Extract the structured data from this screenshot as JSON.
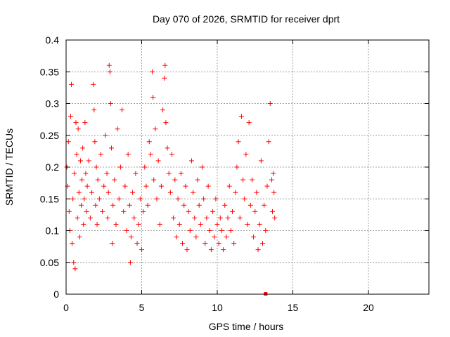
{
  "chart_data": {
    "type": "scatter",
    "title": "Day 070 of 2026, SRMTID for receiver dprt",
    "xlabel": "GPS time / hours",
    "ylabel": "SRMTID / TECUs",
    "xlim": [
      0,
      24
    ],
    "ylim": [
      0,
      0.4
    ],
    "xticks": [
      0,
      5,
      10,
      15,
      20
    ],
    "yticks": [
      0,
      0.05,
      0.1,
      0.15,
      0.2,
      0.25,
      0.3,
      0.35,
      0.4
    ],
    "xtick_labels": [
      "0",
      "5",
      "10",
      "15",
      "20"
    ],
    "ytick_labels": [
      "0",
      "0.05",
      "0.1",
      "0.15",
      "0.2",
      "0.25",
      "0.3",
      "0.35",
      "0.4"
    ],
    "grid": true,
    "marker": "plus",
    "color": "#ff0000",
    "series": [
      {
        "values_xy": [
          [
            0.05,
            0.2
          ],
          [
            0.1,
            0.17
          ],
          [
            0.15,
            0.24
          ],
          [
            0.2,
            0.13
          ],
          [
            0.25,
            0.1
          ],
          [
            0.3,
            0.28
          ],
          [
            0.35,
            0.33
          ],
          [
            0.4,
            0.08
          ],
          [
            0.45,
            0.15
          ],
          [
            0.5,
            0.05
          ],
          [
            0.55,
            0.19
          ],
          [
            0.6,
            0.04
          ],
          [
            0.65,
            0.27
          ],
          [
            0.7,
            0.22
          ],
          [
            0.75,
            0.12
          ],
          [
            0.8,
            0.26
          ],
          [
            0.85,
            0.16
          ],
          [
            0.9,
            0.09
          ],
          [
            0.95,
            0.21
          ],
          [
            1.0,
            0.14
          ],
          [
            1.05,
            0.18
          ],
          [
            1.1,
            0.23
          ],
          [
            1.15,
            0.11
          ],
          [
            1.2,
            0.15
          ],
          [
            1.25,
            0.27
          ],
          [
            1.3,
            0.19
          ],
          [
            1.35,
            0.13
          ],
          [
            1.4,
            0.17
          ],
          [
            1.5,
            0.21
          ],
          [
            1.6,
            0.12
          ],
          [
            1.7,
            0.16
          ],
          [
            1.8,
            0.33
          ],
          [
            1.85,
            0.29
          ],
          [
            1.9,
            0.24
          ],
          [
            1.95,
            0.14
          ],
          [
            2.0,
            0.2
          ],
          [
            2.05,
            0.11
          ],
          [
            2.1,
            0.18
          ],
          [
            2.2,
            0.15
          ],
          [
            2.3,
            0.22
          ],
          [
            2.4,
            0.13
          ],
          [
            2.5,
            0.17
          ],
          [
            2.6,
            0.25
          ],
          [
            2.7,
            0.19
          ],
          [
            2.75,
            0.12
          ],
          [
            2.8,
            0.16
          ],
          [
            2.85,
            0.36
          ],
          [
            2.9,
            0.35
          ],
          [
            2.95,
            0.3
          ],
          [
            3.0,
            0.23
          ],
          [
            3.05,
            0.08
          ],
          [
            3.1,
            0.14
          ],
          [
            3.2,
            0.18
          ],
          [
            3.3,
            0.11
          ],
          [
            3.4,
            0.26
          ],
          [
            3.5,
            0.15
          ],
          [
            3.6,
            0.2
          ],
          [
            3.7,
            0.29
          ],
          [
            3.8,
            0.13
          ],
          [
            3.9,
            0.17
          ],
          [
            4.0,
            0.1
          ],
          [
            4.1,
            0.22
          ],
          [
            4.2,
            0.14
          ],
          [
            4.25,
            0.05
          ],
          [
            4.3,
            0.09
          ],
          [
            4.4,
            0.16
          ],
          [
            4.5,
            0.12
          ],
          [
            4.6,
            0.19
          ],
          [
            4.7,
            0.08
          ],
          [
            4.8,
            0.11
          ],
          [
            4.9,
            0.15
          ],
          [
            5.0,
            0.07
          ],
          [
            5.1,
            0.13
          ],
          [
            5.2,
            0.2
          ],
          [
            5.3,
            0.17
          ],
          [
            5.4,
            0.14
          ],
          [
            5.5,
            0.24
          ],
          [
            5.6,
            0.22
          ],
          [
            5.7,
            0.35
          ],
          [
            5.75,
            0.31
          ],
          [
            5.8,
            0.18
          ],
          [
            5.9,
            0.26
          ],
          [
            6.0,
            0.15
          ],
          [
            6.1,
            0.21
          ],
          [
            6.2,
            0.11
          ],
          [
            6.3,
            0.17
          ],
          [
            6.4,
            0.29
          ],
          [
            6.5,
            0.34
          ],
          [
            6.55,
            0.36
          ],
          [
            6.6,
            0.27
          ],
          [
            6.7,
            0.23
          ],
          [
            6.8,
            0.19
          ],
          [
            6.9,
            0.16
          ],
          [
            7.0,
            0.22
          ],
          [
            7.1,
            0.12
          ],
          [
            7.2,
            0.18
          ],
          [
            7.3,
            0.09
          ],
          [
            7.4,
            0.15
          ],
          [
            7.5,
            0.11
          ],
          [
            7.6,
            0.19
          ],
          [
            7.7,
            0.08
          ],
          [
            7.8,
            0.14
          ],
          [
            7.9,
            0.17
          ],
          [
            8.0,
            0.07
          ],
          [
            8.1,
            0.13
          ],
          [
            8.2,
            0.1
          ],
          [
            8.3,
            0.21
          ],
          [
            8.4,
            0.16
          ],
          [
            8.5,
            0.12
          ],
          [
            8.6,
            0.09
          ],
          [
            8.7,
            0.18
          ],
          [
            8.8,
            0.14
          ],
          [
            8.9,
            0.11
          ],
          [
            9.0,
            0.2
          ],
          [
            9.1,
            0.15
          ],
          [
            9.2,
            0.08
          ],
          [
            9.3,
            0.12
          ],
          [
            9.4,
            0.17
          ],
          [
            9.5,
            0.1
          ],
          [
            9.6,
            0.07
          ],
          [
            9.7,
            0.13
          ],
          [
            9.8,
            0.09
          ],
          [
            9.9,
            0.15
          ],
          [
            10.0,
            0.11
          ],
          [
            10.1,
            0.08
          ],
          [
            10.2,
            0.12
          ],
          [
            10.3,
            0.1
          ],
          [
            10.4,
            0.07
          ],
          [
            10.5,
            0.14
          ],
          [
            10.6,
            0.09
          ],
          [
            10.7,
            0.12
          ],
          [
            10.8,
            0.17
          ],
          [
            10.9,
            0.1
          ],
          [
            11.0,
            0.13
          ],
          [
            11.1,
            0.08
          ],
          [
            11.2,
            0.16
          ],
          [
            11.3,
            0.2
          ],
          [
            11.4,
            0.24
          ],
          [
            11.5,
            0.12
          ],
          [
            11.6,
            0.28
          ],
          [
            11.7,
            0.18
          ],
          [
            11.8,
            0.15
          ],
          [
            11.9,
            0.22
          ],
          [
            12.0,
            0.11
          ],
          [
            12.1,
            0.27
          ],
          [
            12.2,
            0.14
          ],
          [
            12.3,
            0.18
          ],
          [
            12.4,
            0.09
          ],
          [
            12.5,
            0.13
          ],
          [
            12.6,
            0.16
          ],
          [
            12.7,
            0.07
          ],
          [
            12.8,
            0.11
          ],
          [
            12.9,
            0.21
          ],
          [
            13.0,
            0.08
          ],
          [
            13.1,
            0.14
          ],
          [
            13.2,
            0.1
          ],
          [
            13.3,
            0.17
          ],
          [
            13.4,
            0.24
          ],
          [
            13.5,
            0.3
          ],
          [
            13.6,
            0.18
          ],
          [
            13.65,
            0.13
          ],
          [
            13.7,
            0.19
          ],
          [
            13.75,
            0.16
          ],
          [
            13.8,
            0.12
          ],
          [
            13.2,
            0.0
          ]
        ]
      }
    ]
  }
}
